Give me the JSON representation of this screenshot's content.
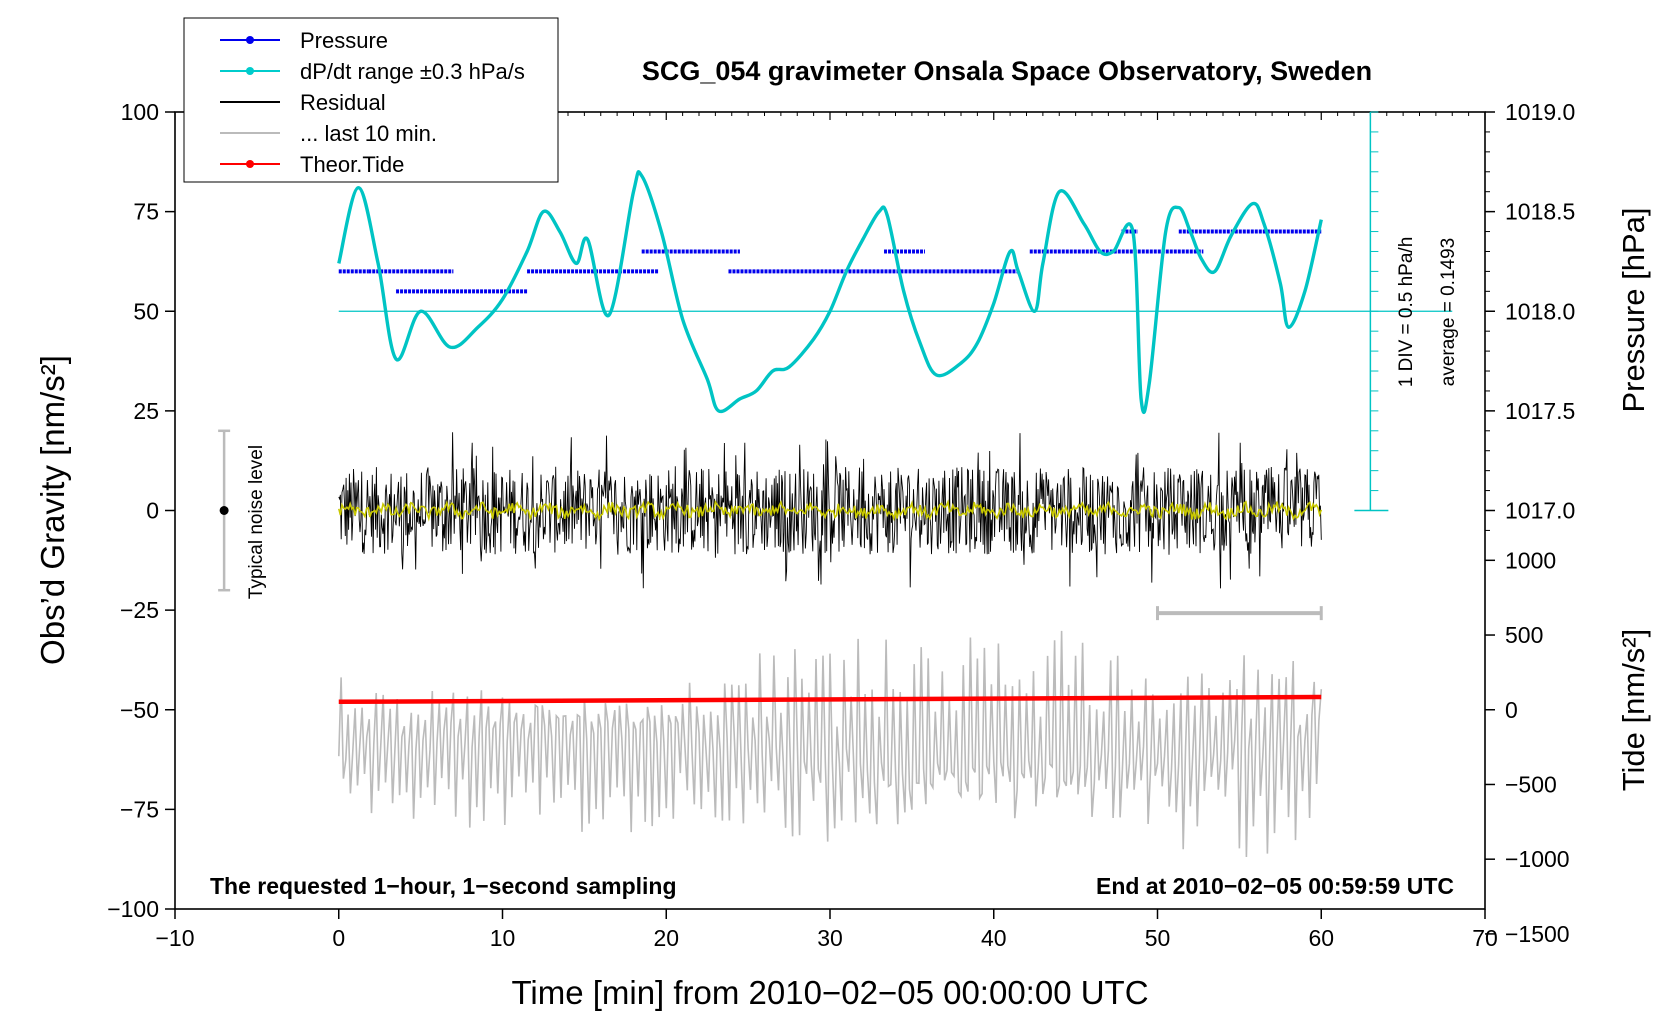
{
  "chart_data": {
    "type": "line",
    "title": "SCG_054 gravimeter Onsala Space Observatory, Sweden",
    "xlabel": "Time [min] from 2010−02−05 00:00:00 UTC",
    "ylabel_left": "Obs’d Gravity [nm/s²]",
    "ylabel_right_pressure": "Pressure [hPa]",
    "ylabel_right_tide": "Tide [nm/s²]",
    "xlim": [
      -10,
      70
    ],
    "ylim": [
      -100,
      100
    ],
    "x_ticks": [
      -10,
      0,
      10,
      20,
      30,
      40,
      50,
      60,
      70
    ],
    "x_tick_labels": [
      "−10",
      "0",
      "10",
      "20",
      "30",
      "40",
      "50",
      "60",
      "70"
    ],
    "y_ticks": [
      100,
      75,
      50,
      25,
      0,
      -25,
      -50,
      -75,
      -100
    ],
    "y_tick_labels": [
      "100",
      "75",
      "50",
      "25",
      "0",
      "−25",
      "−50",
      "−75",
      "−100"
    ],
    "pressure_ticks": [
      1019.0,
      1018.5,
      1018.0,
      1017.5,
      1017.0
    ],
    "pressure_tick_labels": [
      "1019.0",
      "1018.5",
      "1018.0",
      "1017.5",
      "1017.0"
    ],
    "tide_ticks": [
      1000,
      500,
      0,
      -500,
      -1000,
      -1500
    ],
    "tide_tick_labels": [
      "1000",
      "500",
      "0",
      "−500",
      "−1000",
      "−1500"
    ],
    "legend": {
      "position": "top-left",
      "entries": [
        {
          "label": "Pressure",
          "color": "#0000ee",
          "marker": true
        },
        {
          "label": "dP/dt range ±0.3 hPa/s",
          "color": "#00cccc",
          "marker": true
        },
        {
          "label": "Residual",
          "color": "#000000",
          "marker": false
        },
        {
          "label": "... last 10 min.",
          "color": "#bbbbbb",
          "marker": false
        },
        {
          "label": "Theor.Tide",
          "color": "#ff0000",
          "marker": true
        }
      ]
    },
    "annotations": {
      "bottom_left": "The requested 1−hour, 1−second sampling",
      "bottom_right": "End at 2010−02−05 00:59:59 UTC",
      "noise_label": "Typical noise level",
      "scale_div": "1 DIV = 0.5 hPa/h",
      "scale_avg": "average = 0.1493"
    },
    "noise_level": {
      "x": -7,
      "center": 0,
      "half_range": 20
    },
    "last_10_min_range": [
      50,
      60
    ],
    "series": [
      {
        "name": "dP/dt",
        "color": "#00c4c4",
        "baseline_y": 50,
        "x": [
          0,
          1.2,
          2.4,
          3.5,
          5,
          6.8,
          8.5,
          10,
          11.5,
          12.5,
          13.5,
          14.5,
          15.2,
          16.5,
          18,
          18.5,
          19.7,
          21,
          22.5,
          23.2,
          24.5,
          25.5,
          26.5,
          27.5,
          29,
          30,
          31,
          32,
          33,
          33.5,
          34.5,
          35.5,
          36.5,
          38,
          39,
          40,
          41,
          41.5,
          42.5,
          43,
          44,
          45.5,
          46.5,
          47.3,
          48.5,
          49,
          49.5,
          50.5,
          51.3,
          52,
          52.7,
          53.5,
          54.5,
          55.8,
          56.5,
          57.5,
          58,
          59,
          60
        ],
        "y": [
          62,
          81,
          62,
          38,
          50,
          41,
          46,
          53,
          65,
          75,
          70,
          62,
          68,
          49,
          80,
          84,
          70,
          48,
          33,
          25,
          28,
          30,
          35,
          36,
          43,
          50,
          60,
          68,
          75,
          74,
          55,
          42,
          34,
          37,
          42,
          52,
          65,
          60,
          50,
          62,
          80,
          72,
          65,
          65,
          70,
          28,
          32,
          70,
          76,
          70,
          63,
          60,
          69,
          77,
          72,
          57,
          46,
          55,
          73
        ]
      },
      {
        "name": "Pressure",
        "color": "#0000ee",
        "segments": [
          {
            "x": [
              0,
              1.8
            ],
            "y": 1018.2
          },
          {
            "x": [
              1.8,
              7
            ],
            "y": 1018.2
          },
          {
            "x": [
              3.5,
              11.5
            ],
            "y": 1018.1
          },
          {
            "x": [
              11.5,
              19.5
            ],
            "y": 1018.2
          },
          {
            "x": [
              18.5,
              24.5
            ],
            "y": 1018.3
          },
          {
            "x": [
              23.8,
              41.5
            ],
            "y": 1018.2
          },
          {
            "x": [
              33.3,
              35.8
            ],
            "y": 1018.3
          },
          {
            "x": [
              42.2,
              52.8
            ],
            "y": 1018.3
          },
          {
            "x": [
              47.8,
              48.8
            ],
            "y": 1018.4
          },
          {
            "x": [
              51.3,
              60
            ],
            "y": 1018.4
          }
        ]
      },
      {
        "name": "Residual",
        "color": "#000000",
        "x_range": [
          0,
          60
        ],
        "amplitude_approx": 20,
        "mean": 0
      },
      {
        "name": "Residual smoothed",
        "color": "#c8c800",
        "x_range": [
          0,
          60
        ],
        "mean": 0
      },
      {
        "name": "Theor.Tide",
        "color": "#ff0000",
        "x": [
          0,
          60
        ],
        "y": [
          -48,
          -46.8
        ]
      },
      {
        "name": "... last 10 min.",
        "color": "#bbbbbb",
        "x_range": [
          0,
          60
        ],
        "center": -60,
        "amplitude_approx": 25
      }
    ]
  }
}
